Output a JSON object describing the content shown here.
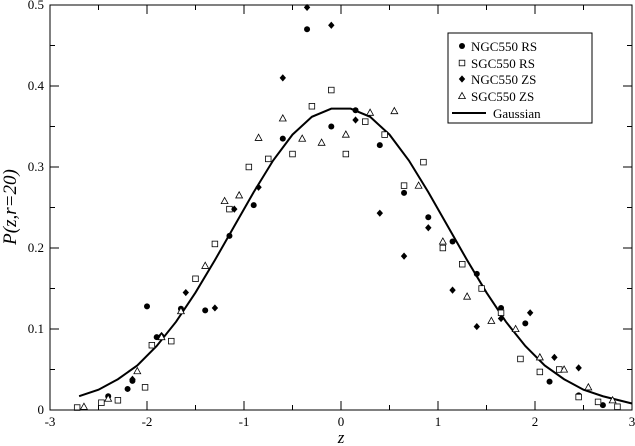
{
  "chart_data": {
    "type": "scatter",
    "title": "",
    "xlabel": "z",
    "ylabel": "P(z,r=20)",
    "xlim": [
      -3,
      3
    ],
    "ylim": [
      0,
      0.5
    ],
    "xticks": [
      "-3",
      "-2",
      "-1",
      "0",
      "1",
      "2",
      "3"
    ],
    "yticks": [
      "0",
      "0.1",
      "0.2",
      "0.3",
      "0.4",
      "0.5"
    ],
    "grid": false,
    "legend_position": "top-right",
    "series": [
      {
        "name": "NGC550 RS",
        "marker": "circle",
        "x": [
          -2.4,
          -2.2,
          -2.15,
          -2.0,
          -1.9,
          -1.65,
          -1.4,
          -1.15,
          -0.9,
          -0.6,
          -0.35,
          -0.1,
          0.15,
          0.4,
          0.65,
          0.9,
          1.15,
          1.4,
          1.65,
          1.9,
          2.15,
          2.45,
          2.7
        ],
        "y": [
          0.017,
          0.026,
          0.036,
          0.128,
          0.09,
          0.125,
          0.123,
          0.215,
          0.253,
          0.335,
          0.47,
          0.35,
          0.37,
          0.327,
          0.268,
          0.238,
          0.208,
          0.168,
          0.126,
          0.107,
          0.035,
          0.018,
          0.006
        ]
      },
      {
        "name": "SGC550 RS",
        "marker": "square",
        "x": [
          -2.72,
          -2.47,
          -2.3,
          -2.02,
          -1.95,
          -1.75,
          -1.5,
          -1.3,
          -1.15,
          -0.95,
          -0.75,
          -0.5,
          -0.3,
          -0.1,
          0.05,
          0.25,
          0.45,
          0.65,
          0.85,
          1.05,
          1.25,
          1.45,
          1.65,
          1.85,
          2.05,
          2.25,
          2.45,
          2.65,
          2.85
        ],
        "y": [
          0.003,
          0.009,
          0.012,
          0.028,
          0.08,
          0.085,
          0.162,
          0.205,
          0.248,
          0.3,
          0.31,
          0.316,
          0.375,
          0.395,
          0.316,
          0.356,
          0.34,
          0.277,
          0.306,
          0.2,
          0.18,
          0.15,
          0.12,
          0.063,
          0.047,
          0.05,
          0.016,
          0.01,
          0.004
        ]
      },
      {
        "name": "NGC550 ZS",
        "marker": "diamond",
        "x": [
          -2.15,
          -1.85,
          -1.6,
          -1.3,
          -1.1,
          -0.85,
          -0.6,
          -0.35,
          -0.1,
          0.15,
          0.4,
          0.65,
          0.9,
          1.15,
          1.4,
          1.65,
          1.95,
          2.2,
          2.45
        ],
        "y": [
          0.038,
          0.092,
          0.145,
          0.126,
          0.248,
          0.275,
          0.41,
          0.497,
          0.475,
          0.358,
          0.243,
          0.19,
          0.225,
          0.148,
          0.103,
          0.113,
          0.12,
          0.065,
          0.052
        ]
      },
      {
        "name": "SGC550 ZS",
        "marker": "triangle",
        "x": [
          -2.65,
          -2.4,
          -2.1,
          -1.85,
          -1.65,
          -1.4,
          -1.2,
          -1.05,
          -0.85,
          -0.6,
          -0.4,
          -0.2,
          0.05,
          0.3,
          0.55,
          0.8,
          1.05,
          1.3,
          1.55,
          1.8,
          2.05,
          2.3,
          2.55,
          2.8
        ],
        "y": [
          0.004,
          0.014,
          0.048,
          0.09,
          0.122,
          0.178,
          0.258,
          0.265,
          0.336,
          0.36,
          0.335,
          0.33,
          0.34,
          0.367,
          0.369,
          0.277,
          0.208,
          0.14,
          0.11,
          0.1,
          0.065,
          0.05,
          0.028,
          0.012
        ]
      }
    ],
    "curve": {
      "name": "Gaussian",
      "x": [
        -2.7,
        -2.5,
        -2.3,
        -2.1,
        -1.9,
        -1.7,
        -1.5,
        -1.3,
        -1.1,
        -0.9,
        -0.7,
        -0.5,
        -0.3,
        -0.1,
        0.1,
        0.3,
        0.5,
        0.7,
        0.9,
        1.1,
        1.3,
        1.5,
        1.7,
        1.9,
        2.1,
        2.3,
        2.5,
        2.7,
        3.0
      ],
      "y": [
        0.017,
        0.025,
        0.038,
        0.055,
        0.079,
        0.109,
        0.145,
        0.185,
        0.227,
        0.269,
        0.308,
        0.34,
        0.362,
        0.372,
        0.372,
        0.362,
        0.34,
        0.308,
        0.269,
        0.227,
        0.185,
        0.145,
        0.109,
        0.079,
        0.055,
        0.038,
        0.025,
        0.017,
        0.008
      ]
    }
  }
}
